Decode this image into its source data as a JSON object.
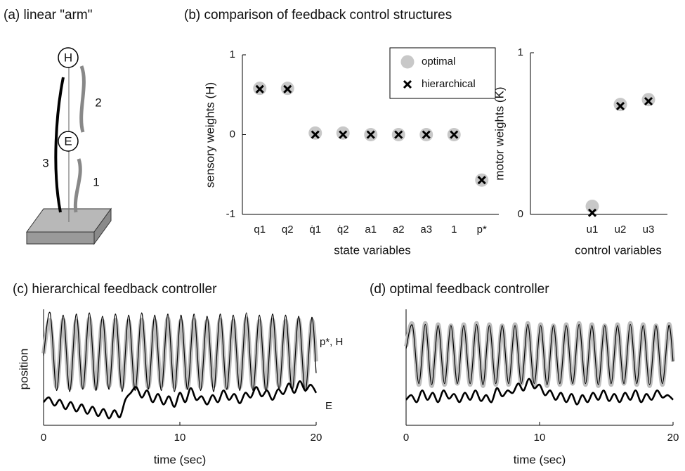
{
  "chart_data": [
    {
      "type": "diagram",
      "title": "(a) linear \"arm\"",
      "labels": [
        "H",
        "E",
        "3",
        "2",
        "1"
      ]
    },
    {
      "type": "scatter",
      "title": "(b) comparison of feedback control structures",
      "ylabel": "sensory weights (H)",
      "xlabel": "state variables",
      "categories": [
        "q1",
        "q2",
        "q̇1",
        "q̇2",
        "a1",
        "a2",
        "a3",
        "1",
        "p*"
      ],
      "ylim": [
        -1,
        1
      ],
      "yticks": [
        -1,
        0,
        1
      ],
      "legend": "upper right",
      "series": [
        {
          "name": "optimal",
          "color": "#c8c8c8",
          "marker": "circle",
          "values": [
            0.58,
            0.58,
            0.02,
            0.02,
            0,
            0,
            0,
            0,
            -0.57
          ]
        },
        {
          "name": "hierarchical",
          "color": "#000000",
          "marker": "x",
          "values": [
            0.57,
            0.57,
            0,
            0,
            0,
            0,
            0,
            0,
            -0.57
          ]
        }
      ]
    },
    {
      "type": "scatter",
      "ylabel": "motor weights (K)",
      "xlabel": "control variables",
      "categories": [
        "u1",
        "u2",
        "u3"
      ],
      "ylim": [
        0,
        1
      ],
      "yticks": [
        0,
        1
      ],
      "series": [
        {
          "color": "#c8c8c8",
          "marker": "circle",
          "values": [
            0.05,
            0.68,
            0.71
          ]
        },
        {
          "color": "#000000",
          "marker": "x",
          "values": [
            0.01,
            0.67,
            0.7
          ]
        }
      ]
    },
    {
      "type": "line",
      "title": "(c) hierarchical feedback controller",
      "xlabel": "time (sec)",
      "ylabel": "position",
      "xlim": [
        0,
        20
      ],
      "xticks": [
        0,
        10,
        20
      ],
      "ylim": [
        0,
        1
      ],
      "annotations": [
        "p*, H",
        "E"
      ],
      "series": [
        {
          "color": "#bdbdbd",
          "x": [
            0,
            0.48,
            0.96,
            1.44,
            1.92,
            2.4,
            2.88,
            3.36,
            3.84,
            4.32,
            4.8,
            5.28,
            5.76,
            6.24,
            6.72,
            7.2,
            7.68,
            8.16,
            8.64,
            9.12,
            9.6,
            10.08,
            10.56,
            11.04,
            11.52,
            12,
            12.48,
            12.96,
            13.44,
            13.92,
            14.4,
            14.88,
            15.36,
            15.84,
            16.32,
            16.8,
            17.28,
            17.76,
            18.24,
            18.72,
            19.2,
            19.68,
            20
          ],
          "values": [
            0.62,
            0.9,
            0.33,
            0.91,
            0.32,
            0.9,
            0.33,
            0.92,
            0.32,
            0.9,
            0.34,
            0.91,
            0.33,
            0.9,
            0.32,
            0.91,
            0.33,
            0.9,
            0.34,
            0.92,
            0.33,
            0.9,
            0.32,
            0.91,
            0.33,
            0.9,
            0.34,
            0.91,
            0.32,
            0.9,
            0.33,
            0.92,
            0.33,
            0.9,
            0.32,
            0.91,
            0.34,
            0.9,
            0.33,
            0.91,
            0.32,
            0.9,
            0.55
          ]
        },
        {
          "color": "#000000",
          "x": [
            0,
            0.48,
            0.96,
            1.44,
            1.92,
            2.4,
            2.88,
            3.36,
            3.84,
            4.32,
            4.8,
            5.28,
            5.76,
            6.24,
            6.72,
            7.2,
            7.68,
            8.16,
            8.64,
            9.12,
            9.6,
            10.08,
            10.56,
            11.04,
            11.52,
            12,
            12.48,
            12.96,
            13.44,
            13.92,
            14.4,
            14.88,
            15.36,
            15.84,
            16.32,
            16.8,
            17.28,
            17.76,
            18.24,
            18.72,
            19.2,
            19.68,
            20
          ],
          "values": [
            0.6,
            0.97,
            0.3,
            0.95,
            0.29,
            0.96,
            0.31,
            0.97,
            0.3,
            0.94,
            0.31,
            0.96,
            0.29,
            0.95,
            0.3,
            0.97,
            0.31,
            0.95,
            0.3,
            0.96,
            0.29,
            0.95,
            0.31,
            0.96,
            0.3,
            0.94,
            0.29,
            0.96,
            0.31,
            0.95,
            0.3,
            0.97,
            0.3,
            0.95,
            0.29,
            0.96,
            0.31,
            0.95,
            0.3,
            0.94,
            0.29,
            0.93,
            0.45
          ]
        },
        {
          "color": "#000000",
          "x": [
            0,
            0.4,
            0.8,
            1.2,
            1.6,
            2,
            2.4,
            2.8,
            3.2,
            3.6,
            4,
            4.4,
            4.8,
            5.2,
            5.6,
            6,
            6.4,
            6.8,
            7.2,
            7.6,
            8,
            8.4,
            8.8,
            9.2,
            9.6,
            10,
            10.4,
            10.8,
            11.2,
            11.6,
            12,
            12.4,
            12.8,
            13.2,
            13.6,
            14,
            14.4,
            14.8,
            15.2,
            15.6,
            16,
            16.4,
            16.8,
            17.2,
            17.6,
            18,
            18.4,
            18.8,
            19.2,
            19.6,
            20
          ],
          "values": [
            0.2,
            0.24,
            0.17,
            0.22,
            0.14,
            0.2,
            0.12,
            0.18,
            0.1,
            0.16,
            0.08,
            0.14,
            0.06,
            0.13,
            0.07,
            0.22,
            0.28,
            0.33,
            0.24,
            0.3,
            0.2,
            0.27,
            0.18,
            0.25,
            0.16,
            0.28,
            0.2,
            0.32,
            0.22,
            0.25,
            0.18,
            0.26,
            0.2,
            0.3,
            0.22,
            0.27,
            0.19,
            0.28,
            0.24,
            0.33,
            0.25,
            0.3,
            0.22,
            0.31,
            0.27,
            0.36,
            0.28,
            0.38,
            0.3,
            0.35,
            0.28
          ]
        }
      ]
    },
    {
      "type": "line",
      "title": "(d) optimal feedback controller",
      "xlabel": "time (sec)",
      "xlim": [
        0,
        20
      ],
      "xticks": [
        0,
        10,
        20
      ],
      "ylim": [
        0,
        1
      ],
      "series": [
        {
          "color": "#bdbdbd",
          "x": [
            0,
            0.48,
            0.96,
            1.44,
            1.92,
            2.4,
            2.88,
            3.36,
            3.84,
            4.32,
            4.8,
            5.28,
            5.76,
            6.24,
            6.72,
            7.2,
            7.68,
            8.16,
            8.64,
            9.12,
            9.6,
            10.08,
            10.56,
            11.04,
            11.52,
            12,
            12.48,
            12.96,
            13.44,
            13.92,
            14.4,
            14.88,
            15.36,
            15.84,
            16.32,
            16.8,
            17.28,
            17.76,
            18.24,
            18.72,
            19.2,
            19.68,
            20
          ],
          "values": [
            0.68,
            0.87,
            0.35,
            0.88,
            0.34,
            0.87,
            0.35,
            0.86,
            0.36,
            0.87,
            0.35,
            0.88,
            0.34,
            0.87,
            0.35,
            0.86,
            0.35,
            0.87,
            0.36,
            0.88,
            0.35,
            0.87,
            0.34,
            0.86,
            0.35,
            0.87,
            0.36,
            0.88,
            0.35,
            0.87,
            0.34,
            0.86,
            0.35,
            0.87,
            0.36,
            0.88,
            0.35,
            0.87,
            0.34,
            0.86,
            0.35,
            0.87,
            0.55
          ]
        },
        {
          "color": "#000000",
          "x": [
            0,
            0.48,
            0.96,
            1.44,
            1.92,
            2.4,
            2.88,
            3.36,
            3.84,
            4.32,
            4.8,
            5.28,
            5.76,
            6.24,
            6.72,
            7.2,
            7.68,
            8.16,
            8.64,
            9.12,
            9.6,
            10.08,
            10.56,
            11.04,
            11.52,
            12,
            12.48,
            12.96,
            13.44,
            13.92,
            14.4,
            14.88,
            15.36,
            15.84,
            16.32,
            16.8,
            17.28,
            17.76,
            18.24,
            18.72,
            19.2,
            19.68,
            20
          ],
          "values": [
            0.66,
            0.86,
            0.36,
            0.87,
            0.35,
            0.86,
            0.36,
            0.86,
            0.36,
            0.86,
            0.36,
            0.87,
            0.35,
            0.86,
            0.36,
            0.86,
            0.36,
            0.86,
            0.36,
            0.87,
            0.36,
            0.86,
            0.35,
            0.86,
            0.36,
            0.86,
            0.36,
            0.87,
            0.36,
            0.86,
            0.35,
            0.86,
            0.36,
            0.86,
            0.36,
            0.87,
            0.36,
            0.86,
            0.35,
            0.86,
            0.36,
            0.86,
            0.55
          ]
        },
        {
          "color": "#000000",
          "x": [
            0,
            0.4,
            0.8,
            1.2,
            1.6,
            2,
            2.4,
            2.8,
            3.2,
            3.6,
            4,
            4.4,
            4.8,
            5.2,
            5.6,
            6,
            6.4,
            6.8,
            7.2,
            7.6,
            8,
            8.4,
            8.8,
            9.2,
            9.6,
            10,
            10.4,
            10.8,
            11.2,
            11.6,
            12,
            12.4,
            12.8,
            13.2,
            13.6,
            14,
            14.4,
            14.8,
            15.2,
            15.6,
            16,
            16.4,
            16.8,
            17.2,
            17.6,
            18,
            18.4,
            18.8,
            19.2,
            19.6,
            20
          ],
          "values": [
            0.22,
            0.26,
            0.2,
            0.3,
            0.22,
            0.28,
            0.2,
            0.3,
            0.23,
            0.27,
            0.2,
            0.28,
            0.22,
            0.3,
            0.21,
            0.26,
            0.2,
            0.32,
            0.25,
            0.3,
            0.28,
            0.36,
            0.3,
            0.4,
            0.32,
            0.35,
            0.26,
            0.3,
            0.22,
            0.28,
            0.2,
            0.27,
            0.18,
            0.26,
            0.2,
            0.28,
            0.22,
            0.3,
            0.21,
            0.27,
            0.2,
            0.28,
            0.22,
            0.3,
            0.2,
            0.27,
            0.22,
            0.3,
            0.24,
            0.26,
            0.22
          ]
        }
      ]
    }
  ]
}
